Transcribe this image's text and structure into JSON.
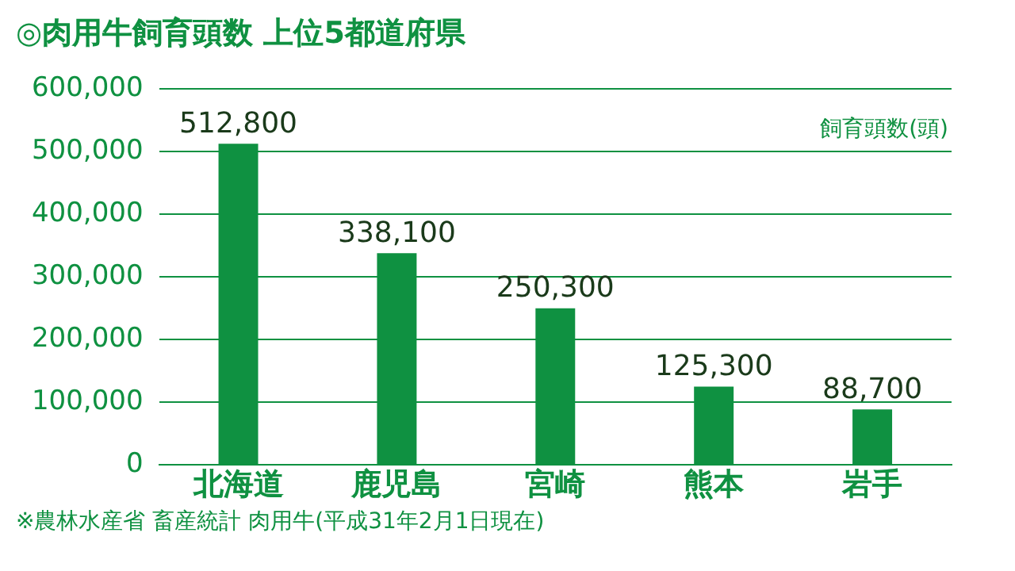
{
  "chart_data": {
    "type": "bar",
    "title": "◎肉用牛飼育頭数 上位5都道府県",
    "ylabel": "飼育頭数(頭)",
    "categories": [
      "北海道",
      "鹿児島",
      "宮崎",
      "熊本",
      "岩手"
    ],
    "values": [
      512800,
      338100,
      250300,
      125300,
      88700
    ],
    "color": "#0f9141",
    "ylim": [
      0,
      600000
    ],
    "yticks": [
      {
        "value": 0,
        "label": "0"
      },
      {
        "value": 100000,
        "label": "100,000"
      },
      {
        "value": 200000,
        "label": "200,000"
      },
      {
        "value": 300000,
        "label": "300,000"
      },
      {
        "value": 400000,
        "label": "400,000"
      },
      {
        "value": 500000,
        "label": "500,000"
      },
      {
        "value": 600000,
        "label": "600,000"
      }
    ],
    "grid": "y",
    "legend": false,
    "value_labels": [
      "512,800",
      "338,100",
      "250,300",
      "125,300",
      "88,700"
    ],
    "annotations": [
      "※農林水産省 畜産統計 肉用牛(平成31年2月1日現在)"
    ]
  }
}
